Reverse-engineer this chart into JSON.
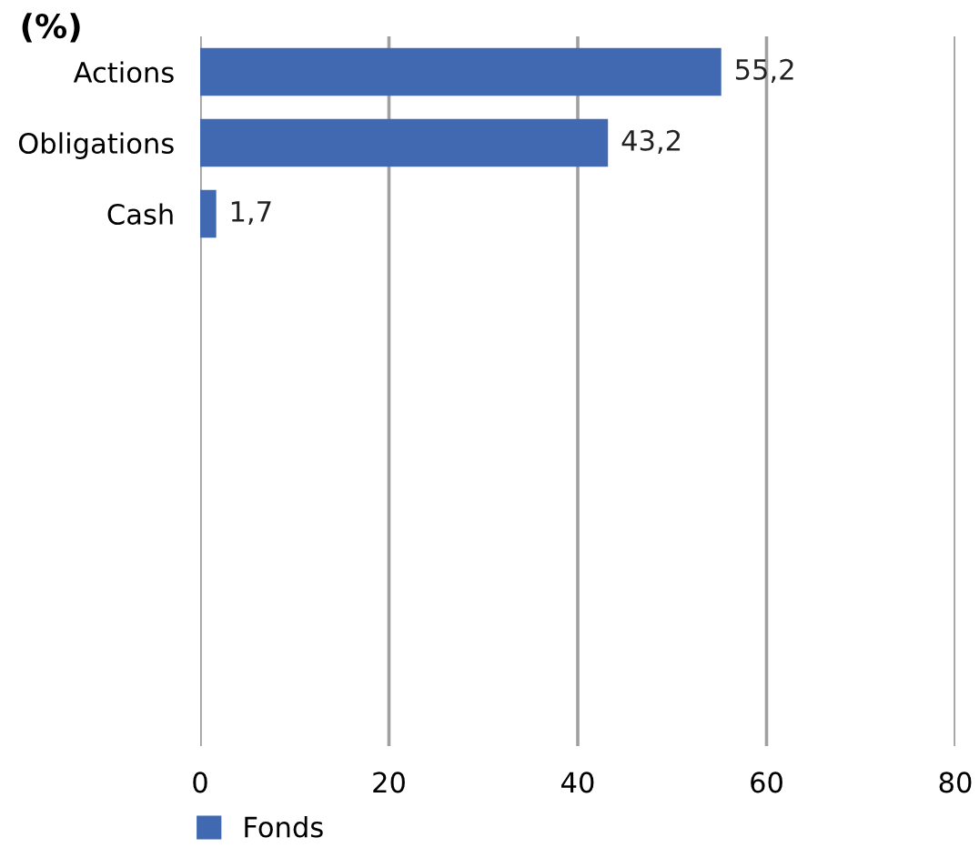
{
  "chart_data": {
    "type": "bar",
    "orientation": "horizontal",
    "title": "(%)",
    "categories": [
      "Actions",
      "Obligations",
      "Cash",
      null,
      null,
      null,
      null,
      null,
      null,
      null
    ],
    "series": [
      {
        "name": "Fonds",
        "color": "#4169b2",
        "values": [
          55.2,
          43.2,
          1.7,
          null,
          null,
          null,
          null,
          null,
          null,
          null
        ],
        "value_labels": [
          "55,2",
          "43,2",
          "1,7",
          null,
          null,
          null,
          null,
          null,
          null,
          null
        ]
      }
    ],
    "xlim": [
      0,
      80
    ],
    "xticks": [
      0,
      20,
      40,
      60,
      80
    ],
    "grid": "x",
    "legend": "bottom left"
  }
}
